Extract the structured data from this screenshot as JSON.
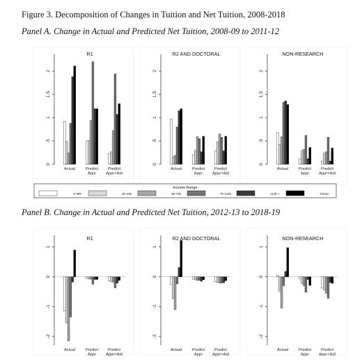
{
  "figure": {
    "title": "Figure 3. Decomposition of Changes in Tuition and Net Tuition, 2008-2018",
    "panelA_title": "Panel A. Change in Actual and Predicted Net Tuition, 2008-09 to 2011-12",
    "panelB_title": "Panel B. Change in Actual and Predicted Net Tuition, 2012-13 to 2018-19"
  },
  "legend": {
    "title": "Income Range",
    "entries": [
      {
        "label": "0-30k",
        "color": "#ffffff"
      },
      {
        "label": "30-48k",
        "color": "#d9d9d9"
      },
      {
        "label": "48-75k",
        "color": "#a6a6a6"
      },
      {
        "label": "75-110k",
        "color": "#737373"
      },
      {
        "label": "110k +",
        "color": "#3a3a3a"
      },
      {
        "label": "Tuition",
        "color": "#000000"
      }
    ]
  },
  "chart_data": [
    {
      "type": "bar",
      "panel": "A",
      "title": "R1",
      "categories": [
        "Actual",
        "Predict Appr",
        "Predict Appr+Aid"
      ],
      "ylim": [
        0,
        2.3
      ],
      "yticks": [
        0,
        0.5,
        1,
        1.5,
        2
      ],
      "ytick_labels": [
        "0",
        ".5",
        "1",
        "1.5",
        "2"
      ],
      "series": [
        {
          "name": "0-30k",
          "values": [
            0.92,
            0.5,
            0.23
          ]
        },
        {
          "name": "30-48k",
          "values": [
            0.49,
            0.51,
            0.27
          ]
        },
        {
          "name": "48-75k",
          "values": [
            0.24,
            0.94,
            0.72
          ]
        },
        {
          "name": "75-110k",
          "values": [
            0.88,
            2.2,
            1.94
          ]
        },
        {
          "name": "110k +",
          "values": [
            1.88,
            1.19,
            1.07
          ]
        },
        {
          "name": "Tuition",
          "values": [
            2.11,
            1.19,
            1.3
          ]
        }
      ]
    },
    {
      "type": "bar",
      "panel": "A",
      "title": "R2 AND DOCTORAL",
      "categories": [
        "Actual",
        "Predict Appr",
        "Predict Appr+Aid"
      ],
      "ylim": [
        0,
        2.3
      ],
      "yticks": [
        0,
        0.5,
        1,
        1.5,
        2
      ],
      "ytick_labels": [
        "0",
        ".5",
        "1",
        "1.5",
        "2"
      ],
      "series": [
        {
          "name": "0-30k",
          "values": [
            0.97,
            0.2,
            0.29
          ]
        },
        {
          "name": "30-48k",
          "values": [
            0.16,
            0.3,
            0.48
          ]
        },
        {
          "name": "48-75k",
          "values": [
            0.19,
            0.59,
            0.65
          ]
        },
        {
          "name": "75-110k",
          "values": [
            0.8,
            0.55,
            0.58
          ]
        },
        {
          "name": "110k +",
          "values": [
            1.15,
            0.27,
            0.29
          ]
        },
        {
          "name": "Tuition",
          "values": [
            1.19,
            0.6,
            0.6
          ]
        }
      ]
    },
    {
      "type": "bar",
      "panel": "A",
      "title": "NON-RESEARCH",
      "categories": [
        "Actual",
        "Predict Appr",
        "Predict Appr+Aid"
      ],
      "ylim": [
        0,
        2.3
      ],
      "yticks": [
        0,
        0.5,
        1,
        1.5,
        2
      ],
      "ytick_labels": [
        "0",
        ".5",
        "1",
        "1.5",
        "2"
      ],
      "series": [
        {
          "name": "0-30k",
          "values": [
            0.68,
            0.12,
            0.07
          ]
        },
        {
          "name": "30-48k",
          "values": [
            0.43,
            0.29,
            0.24
          ]
        },
        {
          "name": "48-75k",
          "values": [
            0.59,
            0.32,
            0.27
          ]
        },
        {
          "name": "75-110k",
          "values": [
            1.33,
            0.62,
            0.58
          ]
        },
        {
          "name": "110k +",
          "values": [
            1.36,
            0.12,
            0.07
          ]
        },
        {
          "name": "Tuition",
          "values": [
            1.28,
            0.36,
            0.35
          ]
        }
      ]
    },
    {
      "type": "bar",
      "panel": "B",
      "title": "R1",
      "categories": [
        "Actual",
        "Predict Appr",
        "Predict Appr+Aid"
      ],
      "ylim": [
        -2.3,
        1.3
      ],
      "yticks": [
        -2,
        -1,
        0,
        1
      ],
      "ytick_labels": [
        "-2",
        "-1",
        "0",
        "1"
      ],
      "series": [
        {
          "name": "0-30k",
          "values": [
            -1.15,
            -0.05,
            -0.14
          ]
        },
        {
          "name": "30-48k",
          "values": [
            -1.55,
            -0.07,
            -0.16
          ]
        },
        {
          "name": "48-75k",
          "values": [
            -2.15,
            -0.08,
            -0.18
          ]
        },
        {
          "name": "75-110k",
          "values": [
            -1.35,
            -0.25,
            -0.37
          ]
        },
        {
          "name": "110k +",
          "values": [
            -0.18,
            -0.09,
            -0.21
          ]
        },
        {
          "name": "Tuition",
          "values": [
            0.9,
            -0.09,
            -0.12
          ]
        }
      ]
    },
    {
      "type": "bar",
      "panel": "B",
      "title": "R2 AND DOCTORAL",
      "categories": [
        "Actual",
        "Predict Appr",
        "Predict Appr+Aid"
      ],
      "ylim": [
        -2.3,
        1.3
      ],
      "yticks": [
        -2,
        -1,
        0,
        1
      ],
      "ytick_labels": [
        "-2",
        "-1",
        "0",
        "1"
      ],
      "series": [
        {
          "name": "0-30k",
          "values": [
            -0.26,
            -0.08,
            -0.17
          ]
        },
        {
          "name": "30-48k",
          "values": [
            -0.73,
            -0.1,
            -0.19
          ]
        },
        {
          "name": "48-75k",
          "values": [
            -1.1,
            -0.12,
            -0.21
          ]
        },
        {
          "name": "75-110k",
          "values": [
            -0.24,
            -0.12,
            -0.21
          ]
        },
        {
          "name": "110k +",
          "values": [
            0.31,
            -0.15,
            -0.2
          ]
        },
        {
          "name": "Tuition",
          "values": [
            1.22,
            -0.1,
            -0.13
          ]
        }
      ]
    },
    {
      "type": "bar",
      "panel": "B",
      "title": "NON-RESEARCH",
      "categories": [
        "Actual",
        "Predict Appr",
        "Predict Appr+Aid"
      ],
      "ylim": [
        -2.3,
        1.3
      ],
      "yticks": [
        -2,
        -1,
        0,
        1
      ],
      "ytick_labels": [
        "-2",
        "-1",
        "0",
        "1"
      ],
      "series": [
        {
          "name": "0-30k",
          "values": [
            0.05,
            -0.06,
            -0.38
          ]
        },
        {
          "name": "30-48k",
          "values": [
            -0.48,
            -0.22,
            -0.44
          ]
        },
        {
          "name": "48-75k",
          "values": [
            -1.05,
            -0.3,
            -0.55
          ]
        },
        {
          "name": "75-110k",
          "values": [
            -0.3,
            -0.52,
            -0.72
          ]
        },
        {
          "name": "110k +",
          "values": [
            0.18,
            -0.09,
            -0.19
          ]
        },
        {
          "name": "Tuition",
          "values": [
            0.98,
            -0.29,
            -0.22
          ]
        }
      ]
    }
  ]
}
